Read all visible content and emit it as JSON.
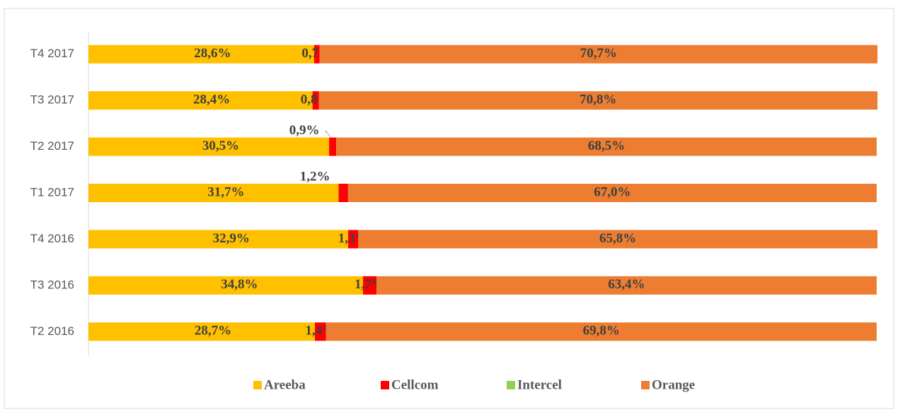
{
  "chart_data": {
    "type": "stacked-bar-horizontal",
    "categories": [
      "T4 2017",
      "T3 2017",
      "T2 2017",
      "T1 2017",
      "T4 2016",
      "T3 2016",
      "T2 2016"
    ],
    "xlim": [
      0,
      100
    ],
    "legend": "bottom",
    "series": [
      {
        "name": "Areeba",
        "color": "#FFC000",
        "values": [
          28.6,
          28.4,
          30.5,
          31.7,
          32.9,
          34.8,
          28.7
        ],
        "value_labels": [
          "28,6%",
          "28,4%",
          "30,5%",
          "31,7%",
          "32,9%",
          "34,8%",
          "28,7%"
        ]
      },
      {
        "name": "Cellcom",
        "color": "#FF0000",
        "values": [
          0.7,
          0.8,
          0.9,
          1.2,
          1.3,
          1.7,
          1.4
        ],
        "value_labels": [
          "0,7%",
          "0,8%",
          "0,9%",
          "1,2%",
          "1,3%",
          "1,7%",
          "1,4%"
        ]
      },
      {
        "name": "Intercel",
        "color": "#92D050",
        "values": [
          0,
          0,
          0,
          0,
          0,
          0,
          0
        ]
      },
      {
        "name": "Orange",
        "color": "#ED7D31",
        "values": [
          70.7,
          70.8,
          68.5,
          67.0,
          65.8,
          63.4,
          69.8
        ],
        "value_labels": [
          "70,7%",
          "70,8%",
          "68,5%",
          "67,0%",
          "65,8%",
          "63,4%",
          "69,8%"
        ]
      }
    ]
  }
}
